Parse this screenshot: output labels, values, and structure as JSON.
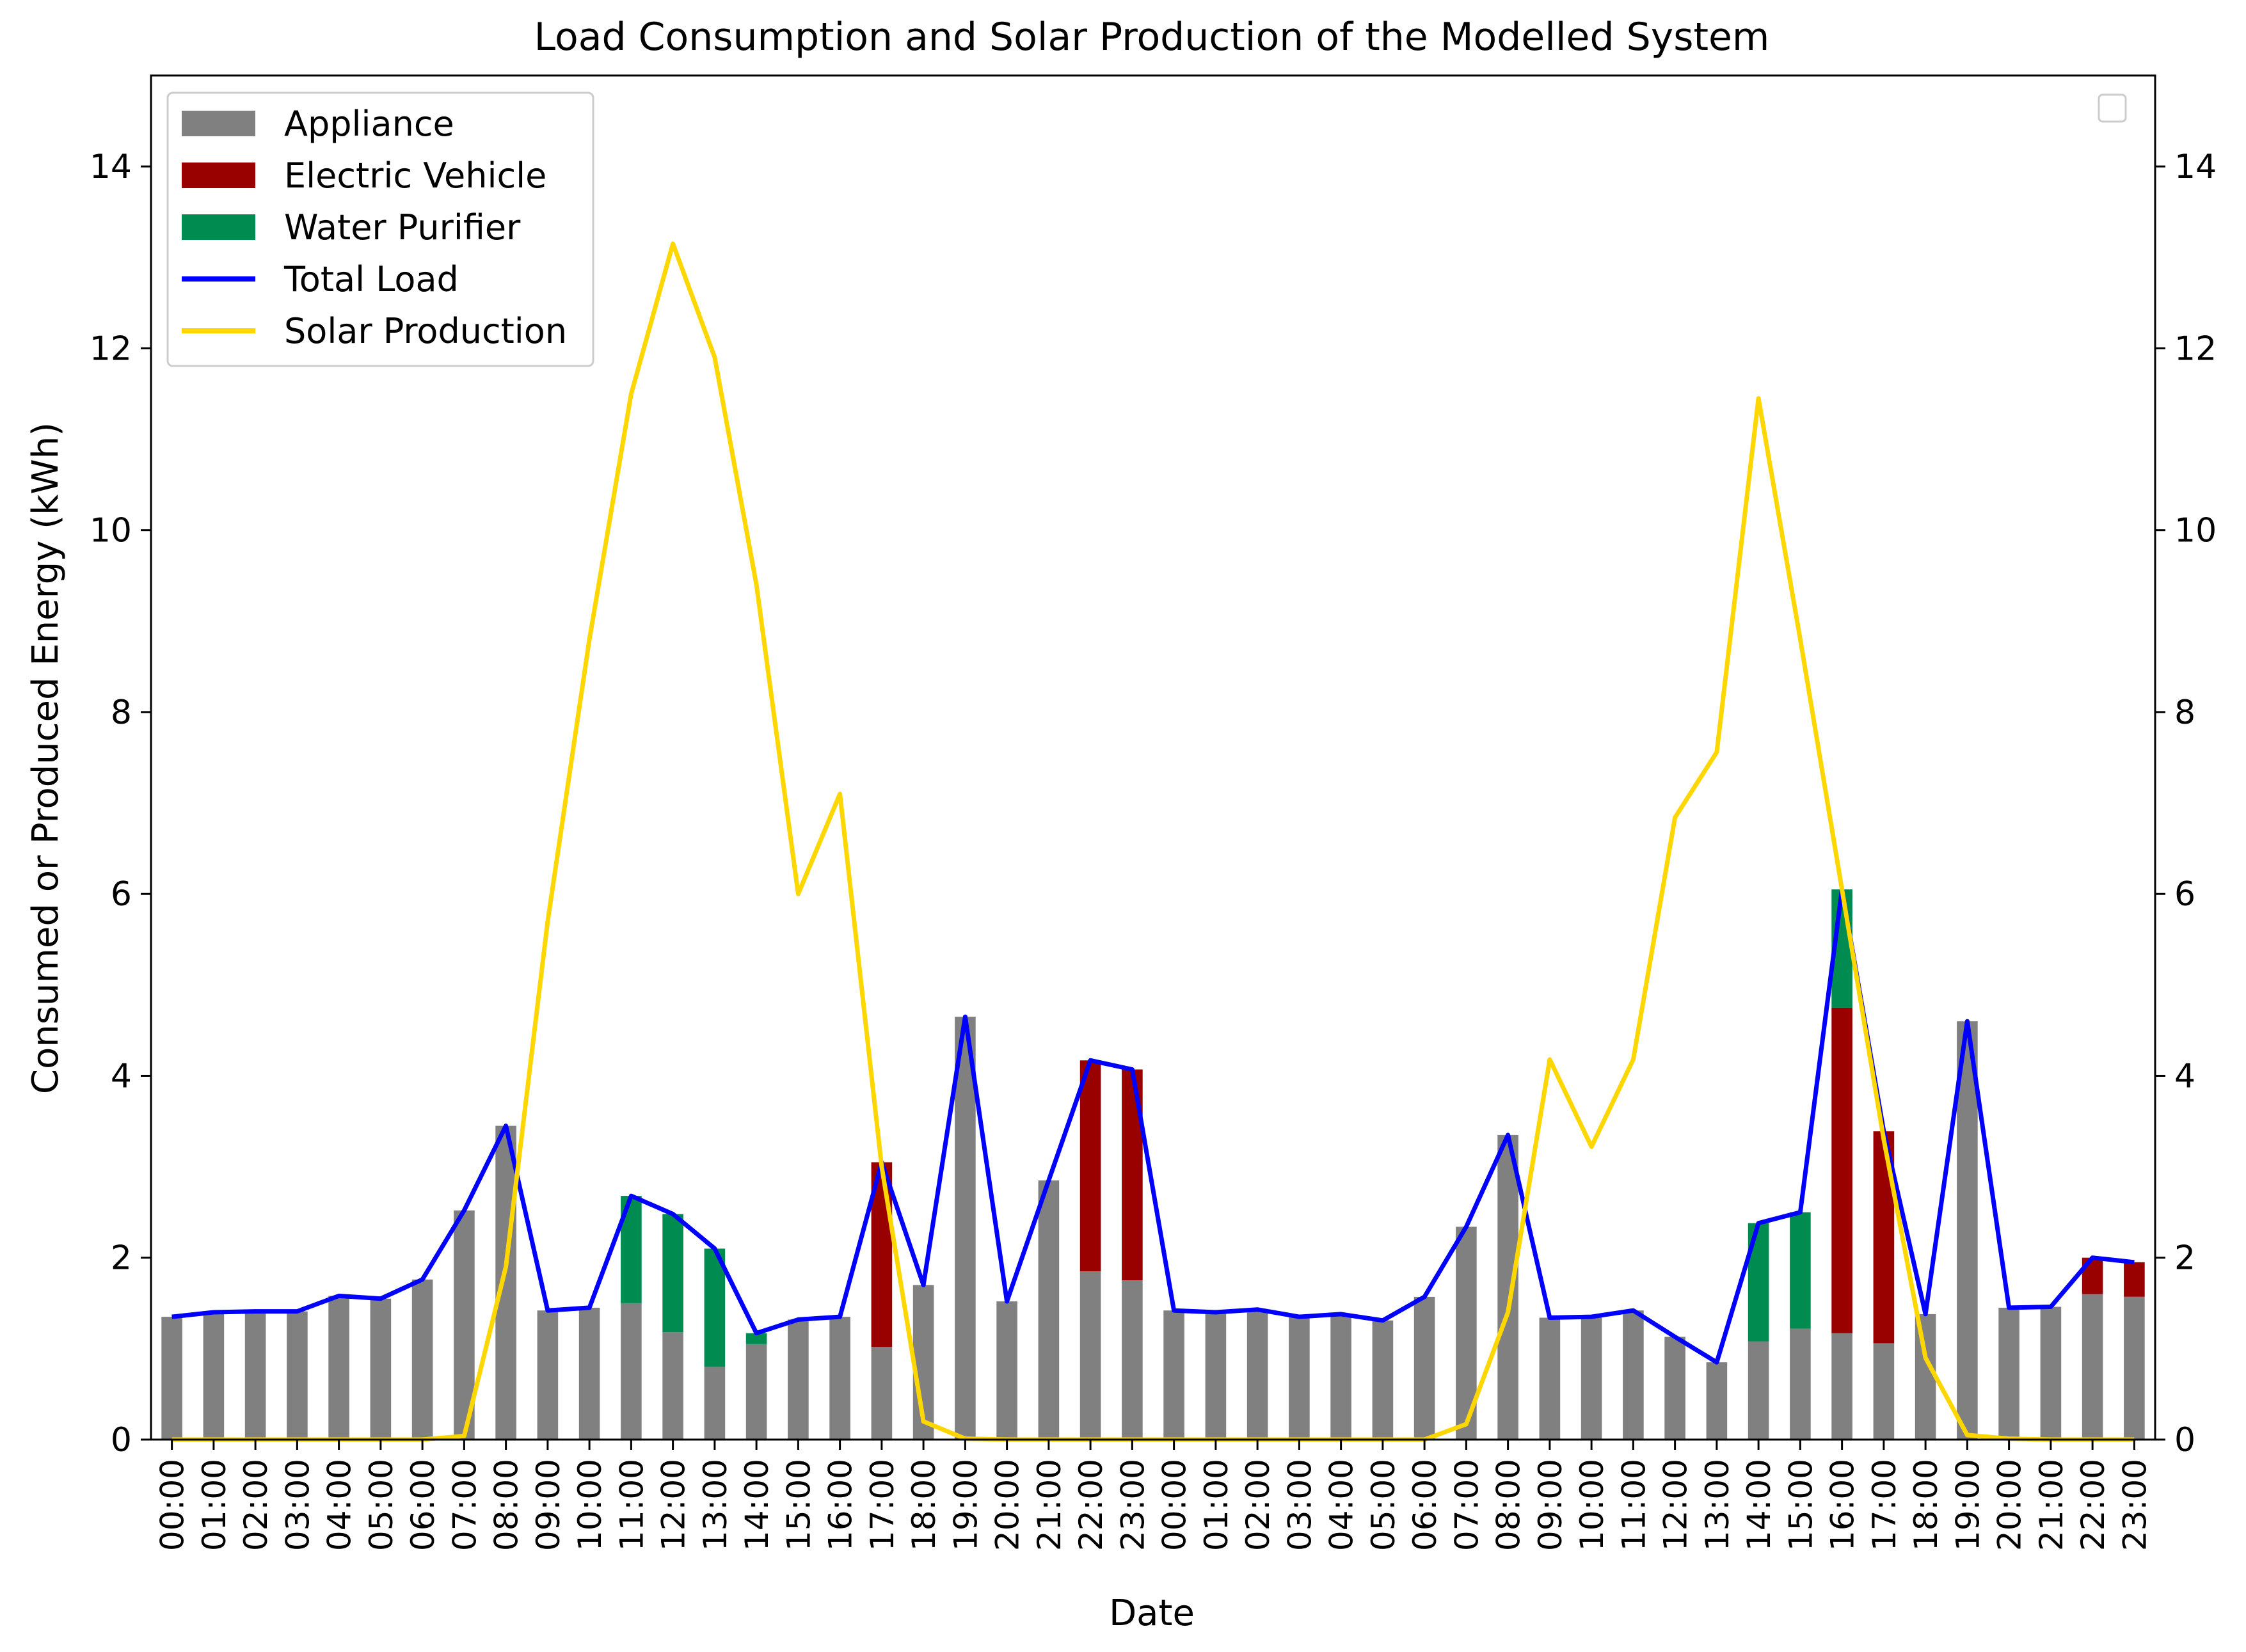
{
  "chart_data": {
    "type": "bar",
    "title": "Load Consumption and Solar Production of the Modelled System",
    "xlabel": "Date",
    "ylabel": "Consumed or Produced Energy (kWh)",
    "ylim": [
      0,
      15
    ],
    "yticks": [
      0,
      2,
      4,
      6,
      8,
      10,
      12,
      14
    ],
    "secondary_ylim": [
      0,
      15
    ],
    "stacked": true,
    "grid": false,
    "legend_position": "upper-left",
    "secondary_legend": "empty legend box at upper-right",
    "categories": [
      "00:00",
      "01:00",
      "02:00",
      "03:00",
      "04:00",
      "05:00",
      "06:00",
      "07:00",
      "08:00",
      "09:00",
      "10:00",
      "11:00",
      "12:00",
      "13:00",
      "14:00",
      "15:00",
      "16:00",
      "17:00",
      "18:00",
      "19:00",
      "20:00",
      "21:00",
      "22:00",
      "23:00",
      "00:00",
      "01:00",
      "02:00",
      "03:00",
      "04:00",
      "05:00",
      "06:00",
      "07:00",
      "08:00",
      "09:00",
      "10:00",
      "11:00",
      "12:00",
      "13:00",
      "14:00",
      "15:00",
      "16:00",
      "17:00",
      "18:00",
      "19:00",
      "20:00",
      "21:00",
      "22:00",
      "23:00"
    ],
    "series": [
      {
        "name": "Appliance",
        "kind": "bar",
        "color": "#808080",
        "values": [
          1.35,
          1.4,
          1.41,
          1.41,
          1.58,
          1.55,
          1.76,
          2.52,
          3.45,
          1.42,
          1.45,
          1.5,
          1.18,
          0.8,
          1.05,
          1.32,
          1.35,
          1.02,
          1.7,
          4.65,
          1.52,
          2.85,
          1.85,
          1.75,
          1.42,
          1.4,
          1.43,
          1.35,
          1.38,
          1.31,
          1.57,
          2.34,
          3.35,
          1.34,
          1.35,
          1.42,
          1.13,
          0.85,
          1.08,
          1.22,
          1.17,
          1.06,
          1.38,
          4.6,
          1.45,
          1.46,
          1.6,
          1.57
        ]
      },
      {
        "name": "Electric Vehicle",
        "kind": "bar",
        "color": "#990000",
        "values": [
          0,
          0,
          0,
          0,
          0,
          0,
          0,
          0,
          0,
          0,
          0,
          0,
          0,
          0,
          0,
          0,
          0,
          2.03,
          0,
          0,
          0,
          0,
          2.32,
          2.32,
          0,
          0,
          0,
          0,
          0,
          0,
          0,
          0,
          0,
          0,
          0,
          0,
          0,
          0,
          0,
          0,
          3.58,
          2.33,
          0,
          0,
          0,
          0,
          0.4,
          0.38
        ]
      },
      {
        "name": "Water Purifier",
        "kind": "bar",
        "color": "#008c50",
        "values": [
          0,
          0,
          0,
          0,
          0,
          0,
          0,
          0,
          0,
          0,
          0,
          1.18,
          1.3,
          1.3,
          0.12,
          0,
          0,
          0,
          0,
          0,
          0,
          0,
          0,
          0,
          0,
          0,
          0,
          0,
          0,
          0,
          0,
          0,
          0,
          0,
          0,
          0,
          0,
          0,
          1.3,
          1.28,
          1.3,
          0,
          0,
          0,
          0,
          0,
          0,
          0
        ]
      },
      {
        "name": "Total Load",
        "kind": "line",
        "color": "#0000ff",
        "values": [
          1.35,
          1.4,
          1.41,
          1.41,
          1.58,
          1.55,
          1.76,
          2.52,
          3.45,
          1.42,
          1.45,
          2.68,
          2.48,
          2.1,
          1.17,
          1.32,
          1.35,
          3.05,
          1.7,
          4.65,
          1.52,
          2.85,
          4.17,
          4.07,
          1.42,
          1.4,
          1.43,
          1.35,
          1.38,
          1.31,
          1.57,
          2.34,
          3.35,
          1.34,
          1.35,
          1.42,
          1.13,
          0.85,
          2.38,
          2.5,
          6.05,
          3.39,
          1.38,
          4.6,
          1.45,
          1.46,
          2.0,
          1.95
        ]
      },
      {
        "name": "Solar Production",
        "kind": "line",
        "color": "#ffd700",
        "values": [
          0,
          0,
          0,
          0,
          0,
          0,
          0,
          0.04,
          1.9,
          5.7,
          8.8,
          11.5,
          13.15,
          11.9,
          9.4,
          6.0,
          7.1,
          3.0,
          0.2,
          0.01,
          0,
          0,
          0,
          0,
          0,
          0,
          0,
          0,
          0,
          0,
          0,
          0.17,
          1.4,
          4.18,
          3.22,
          4.18,
          6.84,
          7.56,
          11.45,
          8.8,
          6.05,
          3.3,
          0.9,
          0.05,
          0.01,
          0,
          0,
          0
        ]
      }
    ]
  }
}
